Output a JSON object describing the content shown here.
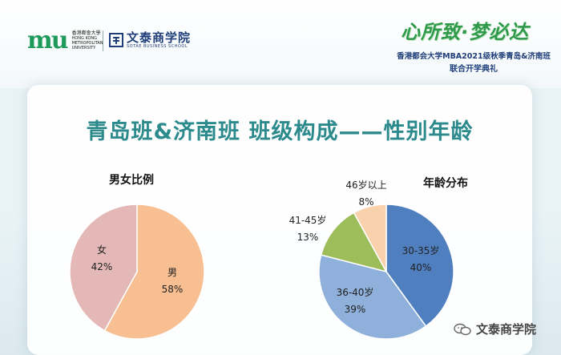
{
  "header": {
    "logo_left": {
      "mark": "mu",
      "cn": "香港都會大學",
      "en_lines": [
        "HONG KONG",
        "METROPOLITAN",
        "UNIVERSITY"
      ]
    },
    "logo_right": {
      "name": "文泰商学院",
      "en": "SOTAE BUSINESS SCHOOL"
    },
    "slogan": "心所致·梦必达",
    "event_line1": "香港都会大学MBA2021级秋季青岛&济南班",
    "event_line2": "联合开学典礼"
  },
  "slide_title": "青岛班&济南班 班级构成——性别年龄",
  "watermark": "文泰商学院",
  "colors": {
    "title": "#2c8a8c",
    "male": "#f7bf92",
    "female": "#e3b8b6",
    "age1": "#4f7fbf",
    "age2": "#8fb0da",
    "age3": "#9cbd5a",
    "age4": "#f9d2ad"
  },
  "chart_data": [
    {
      "type": "pie",
      "title": "男女比例",
      "categories": [
        "男",
        "女"
      ],
      "values": [
        58,
        42
      ],
      "labels": [
        "58%",
        "42%"
      ]
    },
    {
      "type": "pie",
      "title": "年龄分布",
      "categories": [
        "30-35岁",
        "36-40岁",
        "41-45岁",
        "46岁以上"
      ],
      "values": [
        40,
        39,
        13,
        8
      ],
      "labels": [
        "40%",
        "39%",
        "13%",
        "8%"
      ]
    }
  ]
}
